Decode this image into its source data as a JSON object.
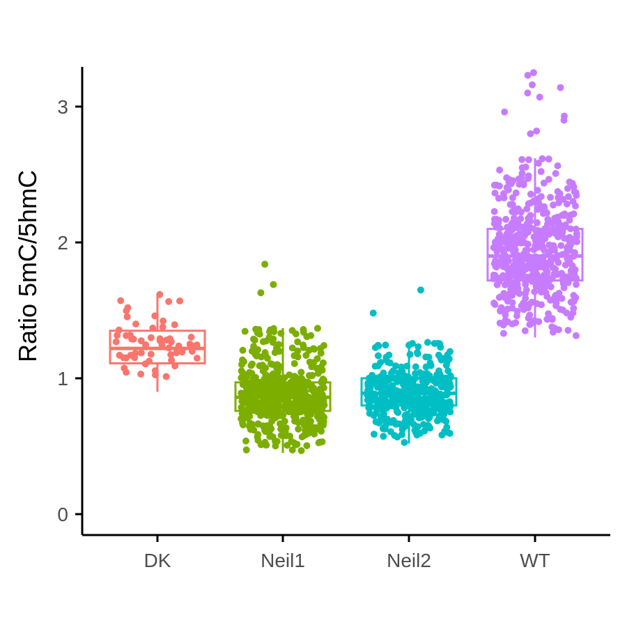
{
  "chart_data": {
    "type": "boxplot",
    "title": "",
    "xlabel": "",
    "ylabel": "Ratio 5mC/5hmC",
    "ylim": [
      -0.15,
      3.3
    ],
    "yticks": [
      0,
      1,
      2,
      3
    ],
    "grid": false,
    "legend": "none",
    "categories": [
      "DK",
      "Neil1",
      "Neil2",
      "WT"
    ],
    "series": [
      {
        "category": "DK",
        "color": "#F8766D",
        "box": {
          "whisker_low": 0.9,
          "q1": 1.11,
          "median": 1.22,
          "q3": 1.35,
          "whisker_high": 1.62
        },
        "points_count": 60,
        "outliers": []
      },
      {
        "category": "Neil1",
        "color": "#7CAE00",
        "box": {
          "whisker_low": 0.45,
          "q1": 0.76,
          "median": 0.86,
          "q3": 0.97,
          "whisker_high": 1.37
        },
        "points_count": 520,
        "outliers": [
          1.84,
          1.69,
          1.63
        ]
      },
      {
        "category": "Neil2",
        "color": "#00BFC4",
        "box": {
          "whisker_low": 0.52,
          "q1": 0.8,
          "median": 0.89,
          "q3": 1.0,
          "whisker_high": 1.27
        },
        "points_count": 430,
        "outliers": [
          1.65,
          1.48
        ]
      },
      {
        "category": "WT",
        "color": "#C77CFF",
        "box": {
          "whisker_low": 1.3,
          "q1": 1.72,
          "median": 1.9,
          "q3": 2.1,
          "whisker_high": 2.62
        },
        "points_count": 520,
        "outliers": [
          3.25,
          3.23,
          3.16,
          3.14,
          3.1,
          3.07,
          2.96,
          2.93,
          2.9,
          2.82,
          2.8
        ]
      }
    ]
  }
}
